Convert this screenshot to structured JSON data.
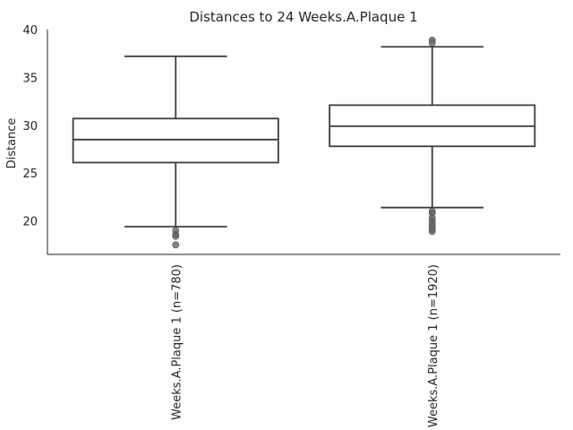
{
  "chart_data": {
    "type": "box",
    "title": "Distances to 24 Weeks.A.Plaque 1",
    "xlabel": "",
    "ylabel": "Distance",
    "ylim": [
      16.5,
      40
    ],
    "yticks": [
      20,
      25,
      30,
      35,
      40
    ],
    "grid": false,
    "colors": {
      "box_edge": "#3d3d3d",
      "outlier": "#666666",
      "axis": "#262626",
      "text": "#262626"
    },
    "categories": [
      "Weeks.A.Plaque 1 (n=780)",
      "Weeks.A.Plaque 1 (n=1920)"
    ],
    "boxes": [
      {
        "category": "Weeks.A.Plaque 1 (n=780)",
        "whisker_low": 19.4,
        "q1": 26.1,
        "median": 28.5,
        "q3": 30.7,
        "whisker_high": 37.2,
        "outliers": [
          19.0,
          18.6,
          18.4,
          17.5
        ]
      },
      {
        "category": "Weeks.A.Plaque 1 (n=1920)",
        "whisker_low": 21.4,
        "q1": 27.8,
        "median": 29.9,
        "q3": 32.1,
        "whisker_high": 38.2,
        "outliers": [
          38.9,
          38.6,
          21.0,
          20.8,
          20.3,
          20.0,
          19.7,
          19.4,
          19.1,
          18.9
        ]
      }
    ]
  }
}
